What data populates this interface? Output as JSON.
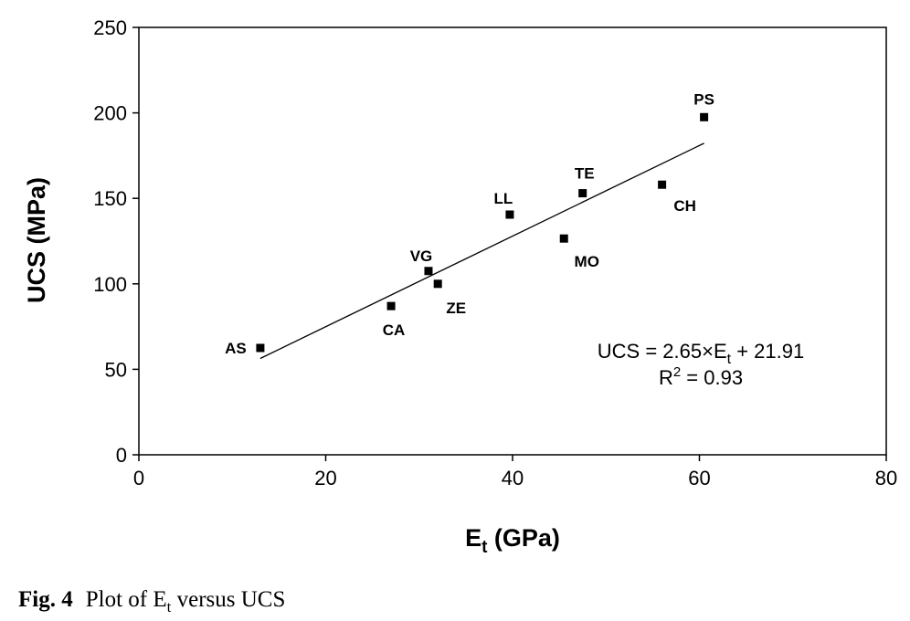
{
  "chart_data": {
    "type": "scatter",
    "title": "",
    "xlabel": {
      "main": "E",
      "sub": "t",
      "rest": " (GPa)"
    },
    "ylabel": "UCS (MPa)",
    "xlim": [
      0,
      80
    ],
    "ylim": [
      0,
      250
    ],
    "xticks": [
      0,
      20,
      40,
      60,
      80
    ],
    "yticks": [
      0,
      50,
      100,
      150,
      200,
      250
    ],
    "grid": false,
    "points": [
      {
        "label": "AS",
        "x": 13.0,
        "y": 62.5
      },
      {
        "label": "CA",
        "x": 27.0,
        "y": 87.0
      },
      {
        "label": "VG",
        "x": 31.0,
        "y": 107.5
      },
      {
        "label": "ZE",
        "x": 32.0,
        "y": 100.0
      },
      {
        "label": "LL",
        "x": 39.7,
        "y": 140.5
      },
      {
        "label": "MO",
        "x": 45.5,
        "y": 126.5
      },
      {
        "label": "TE",
        "x": 47.5,
        "y": 153.0
      },
      {
        "label": "CH",
        "x": 56.0,
        "y": 158.0
      },
      {
        "label": "PS",
        "x": 60.5,
        "y": 197.5
      }
    ],
    "fit": {
      "slope": 2.65,
      "intercept": 21.91,
      "x_range": [
        13.0,
        60.5
      ]
    },
    "equation": {
      "line1_pre": "UCS = 2.65×E",
      "line1_sub": "t",
      "line1_post": " + 21.91",
      "line2_pre": "R",
      "line2_sup": "2",
      "line2_post": " = 0.93"
    }
  },
  "caption": {
    "label": "Fig. 4",
    "text_pre": "Plot of E",
    "text_sub": "t",
    "text_post": " versus UCS"
  }
}
